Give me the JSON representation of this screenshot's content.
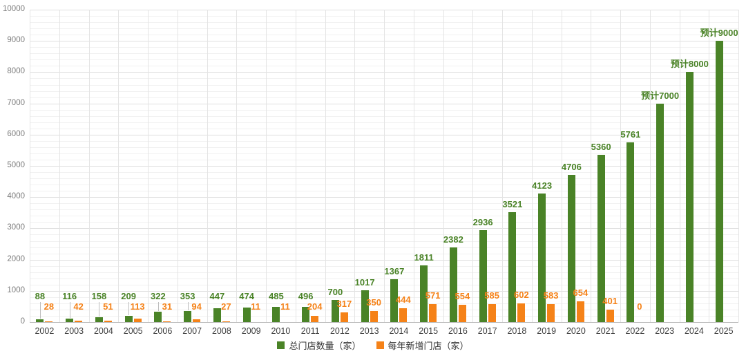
{
  "chart_data": {
    "type": "bar",
    "title": "",
    "categories": [
      "2002",
      "2003",
      "2004",
      "2005",
      "2006",
      "2007",
      "2008",
      "2009",
      "2010",
      "2011",
      "2012",
      "2013",
      "2014",
      "2015",
      "2016",
      "2017",
      "2018",
      "2019",
      "2020",
      "2021",
      "2022",
      "2023",
      "2024",
      "2025"
    ],
    "series": [
      {
        "name": "总门店数量（家）",
        "color": "#4a8327",
        "values": [
          88,
          116,
          158,
          209,
          322,
          353,
          447,
          474,
          485,
          496,
          700,
          1017,
          1367,
          1811,
          2382,
          2936,
          3521,
          4123,
          4706,
          5360,
          5761,
          7000,
          8000,
          9000
        ],
        "labels": [
          "88",
          "116",
          "158",
          "209",
          "322",
          "353",
          "447",
          "474",
          "485",
          "496",
          "700",
          "1017",
          "1367",
          "1811",
          "2382",
          "2936",
          "3521",
          "4123",
          "4706",
          "5360",
          "5761",
          "预计7000",
          "预计8000",
          "预计9000"
        ]
      },
      {
        "name": "每年新增门店（家）",
        "color": "#f58218",
        "values": [
          28,
          42,
          51,
          113,
          31,
          94,
          27,
          11,
          11,
          204,
          317,
          350,
          444,
          571,
          554,
          585,
          602,
          583,
          654,
          401,
          0,
          null,
          null,
          null
        ],
        "labels": [
          "28",
          "42",
          "51",
          "113",
          "31",
          "94",
          "27",
          "11",
          "11",
          "204",
          "317",
          "350",
          "444",
          "571",
          "554",
          "585",
          "602",
          "583",
          "654",
          "401",
          "0",
          "",
          "",
          ""
        ]
      }
    ],
    "xlabel": "",
    "ylabel": "",
    "ylim": [
      0,
      10000
    ],
    "y_major_step": 1000,
    "y_minor_step": 200,
    "y_ticks": [
      "0",
      "1000",
      "2000",
      "3000",
      "4000",
      "5000",
      "6000",
      "7000",
      "8000",
      "9000",
      "10000"
    ],
    "grid": true,
    "legend_position": "bottom"
  },
  "colors": {
    "grid_minor": "#f1f1f1",
    "grid_major": "#dedede",
    "grid_vertical": "#e4e4e4",
    "axis_line": "#b8b8b8",
    "leader_line": "#bdbdbd",
    "y_tick_text": "#7d7d7d",
    "x_tick_text": "#3c3c3c",
    "legend_text": "#333333"
  }
}
